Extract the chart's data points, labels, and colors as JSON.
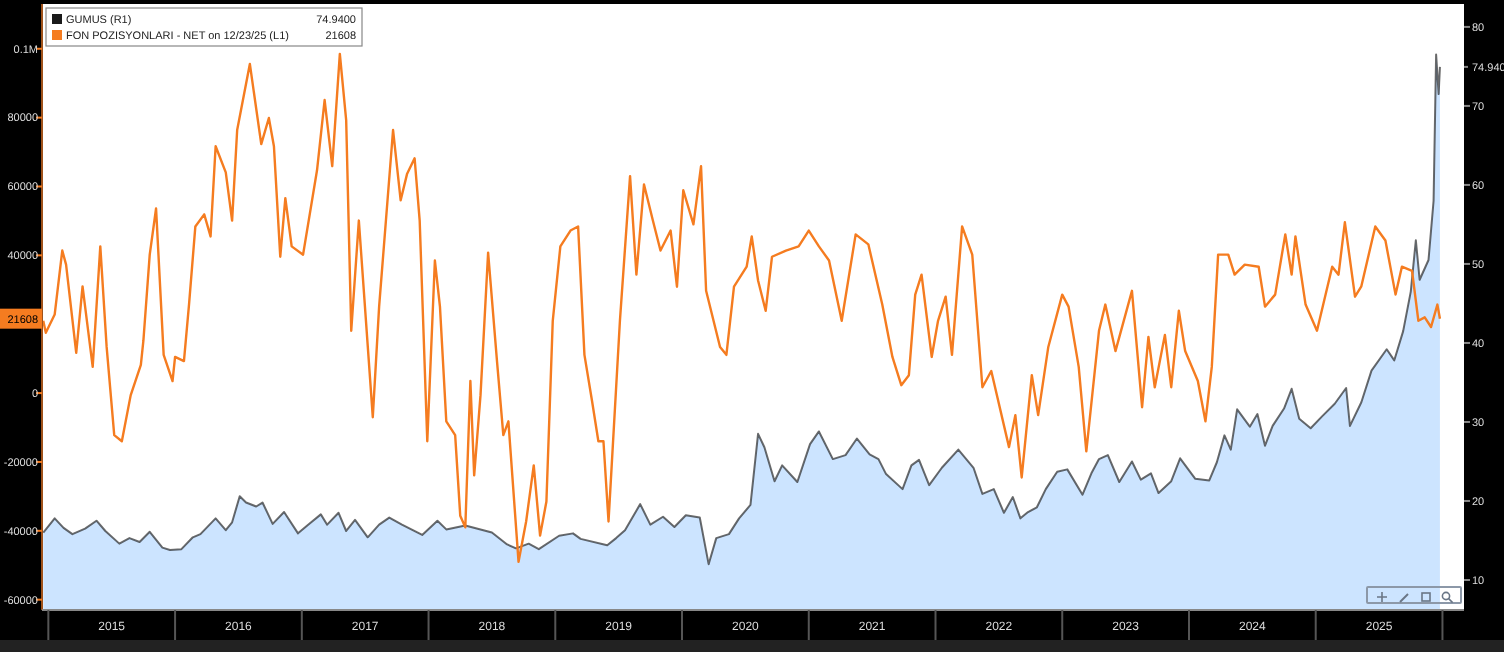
{
  "chart_data": {
    "type": "line",
    "legend": "top left",
    "grid": false,
    "xlim": [
      2014.95,
      2026.17
    ],
    "xticks": [
      {
        "value": 2015,
        "label": null
      },
      {
        "value": 2015.5,
        "label": "2015"
      },
      {
        "value": 2016,
        "label": null
      },
      {
        "value": 2016.5,
        "label": "2016"
      },
      {
        "value": 2017,
        "label": null
      },
      {
        "value": 2017.5,
        "label": "2017"
      },
      {
        "value": 2018,
        "label": null
      },
      {
        "value": 2018.5,
        "label": "2018"
      },
      {
        "value": 2019,
        "label": null
      },
      {
        "value": 2019.5,
        "label": "2019"
      },
      {
        "value": 2020,
        "label": null
      },
      {
        "value": 2020.5,
        "label": "2020"
      },
      {
        "value": 2021,
        "label": null
      },
      {
        "value": 2021.5,
        "label": "2021"
      },
      {
        "value": 2022,
        "label": null
      },
      {
        "value": 2022.5,
        "label": "2022"
      },
      {
        "value": 2023,
        "label": null
      },
      {
        "value": 2023.5,
        "label": "2023"
      },
      {
        "value": 2024,
        "label": null
      },
      {
        "value": 2024.5,
        "label": "2024"
      },
      {
        "value": 2025,
        "label": null
      },
      {
        "value": 2025.5,
        "label": "2025"
      },
      {
        "value": 2026,
        "label": null
      }
    ],
    "ylim": [
      -63000,
      113000
    ],
    "yticks": [
      -60000,
      -40000,
      -20000,
      0,
      {
        "value": 21608,
        "label": "21608"
      },
      40000,
      60000,
      80000,
      {
        "value": 100000,
        "label": "0.1M"
      }
    ],
    "y2lim": [
      6.2,
      82.9
    ],
    "y2ticks": [
      10,
      20,
      30,
      40,
      50,
      60,
      70,
      {
        "value": 74.94,
        "label": "74.940"
      },
      80
    ],
    "annotations": [
      "74.9400",
      "21608"
    ],
    "series": [
      {
        "name": "GUMUS (R1)",
        "type": "area",
        "axis": "y2",
        "color": "#1a1a1a",
        "x": [
          2014.96,
          2015.05,
          2015.12,
          2015.19,
          2015.29,
          2015.38,
          2015.45,
          2015.56,
          2015.64,
          2015.72,
          2015.8,
          2015.9,
          2015.96,
          2016.05,
          2016.14,
          2016.2,
          2016.32,
          2016.4,
          2016.45,
          2016.51,
          2016.56,
          2016.64,
          2016.69,
          2016.77,
          2016.86,
          2016.97,
          2017.05,
          2017.15,
          2017.2,
          2017.29,
          2017.35,
          2017.42,
          2017.52,
          2017.61,
          2017.69,
          2017.79,
          2017.95,
          2018.07,
          2018.14,
          2018.29,
          2018.41,
          2018.5,
          2018.62,
          2018.69,
          2018.79,
          2018.87,
          2019.03,
          2019.14,
          2019.2,
          2019.41,
          2019.48,
          2019.55,
          2019.67,
          2019.75,
          2019.85,
          2019.94,
          2020.03,
          2020.14,
          2020.21,
          2020.27,
          2020.37,
          2020.45,
          2020.54,
          2020.6,
          2020.65,
          2020.73,
          2020.79,
          2020.91,
          2021.01,
          2021.08,
          2021.19,
          2021.29,
          2021.38,
          2021.48,
          2021.55,
          2021.61,
          2021.74,
          2021.81,
          2021.87,
          2021.95,
          2022.05,
          2022.18,
          2022.3,
          2022.37,
          2022.46,
          2022.54,
          2022.61,
          2022.67,
          2022.73,
          2022.8,
          2022.87,
          2022.96,
          2023.04,
          2023.16,
          2023.23,
          2023.29,
          2023.36,
          2023.45,
          2023.55,
          2023.62,
          2023.7,
          2023.76,
          2023.86,
          2023.93,
          2024.05,
          2024.16,
          2024.22,
          2024.28,
          2024.33,
          2024.38,
          2024.48,
          2024.54,
          2024.6,
          2024.66,
          2024.75,
          2024.81,
          2024.87,
          2024.96,
          2025.05,
          2025.15,
          2025.24,
          2025.27,
          2025.36,
          2025.44,
          2025.56,
          2025.62,
          2025.69,
          2025.75,
          2025.79,
          2025.82,
          2025.89,
          2025.93,
          2025.95,
          2025.97,
          2025.98
        ],
        "values": [
          16.0,
          17.8,
          16.6,
          15.8,
          16.5,
          17.5,
          16.2,
          14.6,
          15.3,
          14.8,
          16.1,
          14.1,
          13.8,
          13.9,
          15.4,
          15.8,
          17.8,
          16.3,
          17.3,
          20.6,
          19.8,
          19.3,
          19.8,
          17.1,
          18.6,
          15.9,
          17.0,
          18.3,
          17.0,
          18.5,
          16.2,
          17.6,
          15.4,
          17.0,
          17.9,
          17.0,
          15.7,
          17.5,
          16.4,
          16.9,
          16.4,
          16.0,
          14.5,
          14.0,
          14.6,
          13.9,
          15.6,
          15.9,
          15.2,
          14.4,
          15.3,
          16.3,
          19.6,
          17.0,
          18.0,
          16.7,
          18.2,
          17.9,
          12.0,
          15.3,
          15.8,
          17.8,
          19.5,
          28.5,
          26.8,
          22.5,
          24.5,
          22.4,
          27.2,
          28.8,
          25.3,
          25.8,
          27.9,
          25.9,
          25.3,
          23.4,
          21.5,
          24.5,
          25.2,
          22.0,
          24.2,
          26.5,
          24.2,
          20.9,
          21.5,
          18.5,
          20.5,
          17.8,
          18.6,
          19.2,
          21.5,
          23.7,
          24.0,
          20.8,
          23.5,
          25.3,
          25.8,
          22.4,
          25.0,
          22.7,
          23.5,
          21.0,
          22.5,
          25.4,
          22.8,
          22.6,
          24.9,
          28.3,
          26.5,
          31.6,
          29.4,
          31.0,
          27.0,
          29.5,
          31.7,
          34.2,
          30.4,
          29.2,
          30.7,
          32.3,
          34.3,
          29.5,
          32.5,
          36.5,
          39.2,
          37.8,
          41.5,
          46.5,
          53.0,
          48.0,
          50.5,
          58.0,
          76.5,
          71.5,
          74.94
        ]
      },
      {
        "name": "FON POZISYONLARI - NET on 12/23/25 (L1)",
        "type": "line",
        "color": "#f57c20",
        "x": [
          2014.96,
          2014.98,
          2015.05,
          2015.11,
          2015.14,
          2015.22,
          2015.27,
          2015.35,
          2015.41,
          2015.46,
          2015.52,
          2015.58,
          2015.65,
          2015.73,
          2015.75,
          2015.8,
          2015.85,
          2015.91,
          2015.98,
          2016.0,
          2016.07,
          2016.11,
          2016.16,
          2016.23,
          2016.28,
          2016.32,
          2016.4,
          2016.45,
          2016.49,
          2016.59,
          2016.68,
          2016.74,
          2016.78,
          2016.83,
          2016.87,
          2016.92,
          2017.01,
          2017.12,
          2017.18,
          2017.24,
          2017.3,
          2017.35,
          2017.39,
          2017.45,
          2017.56,
          2017.61,
          2017.72,
          2017.78,
          2017.83,
          2017.89,
          2017.93,
          2017.99,
          2018.05,
          2018.09,
          2018.14,
          2018.21,
          2018.25,
          2018.29,
          2018.33,
          2018.36,
          2018.41,
          2018.47,
          2018.54,
          2018.59,
          2018.63,
          2018.71,
          2018.77,
          2018.83,
          2018.88,
          2018.93,
          2018.98,
          2019.04,
          2019.12,
          2019.18,
          2019.23,
          2019.29,
          2019.34,
          2019.38,
          2019.42,
          2019.51,
          2019.59,
          2019.64,
          2019.7,
          2019.77,
          2019.83,
          2019.91,
          2019.96,
          2020.01,
          2020.09,
          2020.15,
          2020.19,
          2020.3,
          2020.35,
          2020.41,
          2020.51,
          2020.55,
          2020.6,
          2020.66,
          2020.71,
          2020.82,
          2020.92,
          2021.0,
          2021.08,
          2021.16,
          2021.26,
          2021.37,
          2021.47,
          2021.58,
          2021.66,
          2021.73,
          2021.79,
          2021.84,
          2021.89,
          2021.97,
          2022.02,
          2022.08,
          2022.13,
          2022.21,
          2022.29,
          2022.37,
          2022.44,
          2022.58,
          2022.63,
          2022.68,
          2022.76,
          2022.81,
          2022.89,
          2023.0,
          2023.05,
          2023.13,
          2023.19,
          2023.29,
          2023.34,
          2023.42,
          2023.55,
          2023.63,
          2023.68,
          2023.73,
          2023.81,
          2023.86,
          2023.92,
          2023.97,
          2024.07,
          2024.13,
          2024.18,
          2024.23,
          2024.31,
          2024.36,
          2024.44,
          2024.55,
          2024.6,
          2024.68,
          2024.76,
          2024.81,
          2024.84,
          2024.92,
          2025.01,
          2025.13,
          2025.18,
          2025.23,
          2025.31,
          2025.36,
          2025.47,
          2025.55,
          2025.63,
          2025.68,
          2025.76,
          2025.81,
          2025.86,
          2025.91,
          2025.96,
          2025.98
        ],
        "values": [
          21000,
          17500,
          22800,
          41400,
          37300,
          11700,
          31000,
          7600,
          42600,
          13400,
          -12200,
          -14000,
          -600,
          8200,
          15200,
          40200,
          53600,
          11100,
          3500,
          10500,
          9300,
          25700,
          48400,
          51900,
          45500,
          71700,
          64100,
          50100,
          76400,
          95600,
          72300,
          79900,
          71700,
          39600,
          56600,
          42600,
          40200,
          64700,
          85100,
          65900,
          98500,
          79300,
          18100,
          50100,
          -7000,
          25100,
          76400,
          56000,
          63600,
          68200,
          50100,
          -14000,
          38500,
          25100,
          -8200,
          -12200,
          -35600,
          -39000,
          3500,
          -23900,
          -600,
          40800,
          9300,
          -12200,
          -8200,
          -49000,
          -37300,
          -21000,
          -41400,
          -31500,
          21000,
          42600,
          47200,
          48400,
          11100,
          -2300,
          -14000,
          -14000,
          -37300,
          21000,
          63000,
          34400,
          60600,
          50100,
          41400,
          47200,
          30900,
          58900,
          49000,
          65900,
          29700,
          13400,
          11100,
          30900,
          36700,
          45500,
          32700,
          23900,
          39600,
          41400,
          42600,
          47200,
          42600,
          38500,
          21000,
          46100,
          43200,
          25700,
          10500,
          2300,
          5200,
          28600,
          34400,
          10500,
          21000,
          28000,
          11100,
          48400,
          40200,
          1700,
          6400,
          -15700,
          -6400,
          -24500,
          5200,
          -6400,
          13400,
          28600,
          25100,
          7600,
          -16900,
          18100,
          25700,
          12200,
          29700,
          -4100,
          16300,
          1700,
          16900,
          1700,
          23900,
          12200,
          3500,
          -8200,
          7600,
          40200,
          40200,
          34400,
          37300,
          36700,
          25100,
          28600,
          46100,
          34400,
          45500,
          25700,
          18100,
          36700,
          34400,
          49600,
          28000,
          31000,
          48400,
          44300,
          28600,
          36700,
          35500,
          21000,
          22000,
          19200,
          25700,
          21608
        ]
      }
    ]
  }
}
